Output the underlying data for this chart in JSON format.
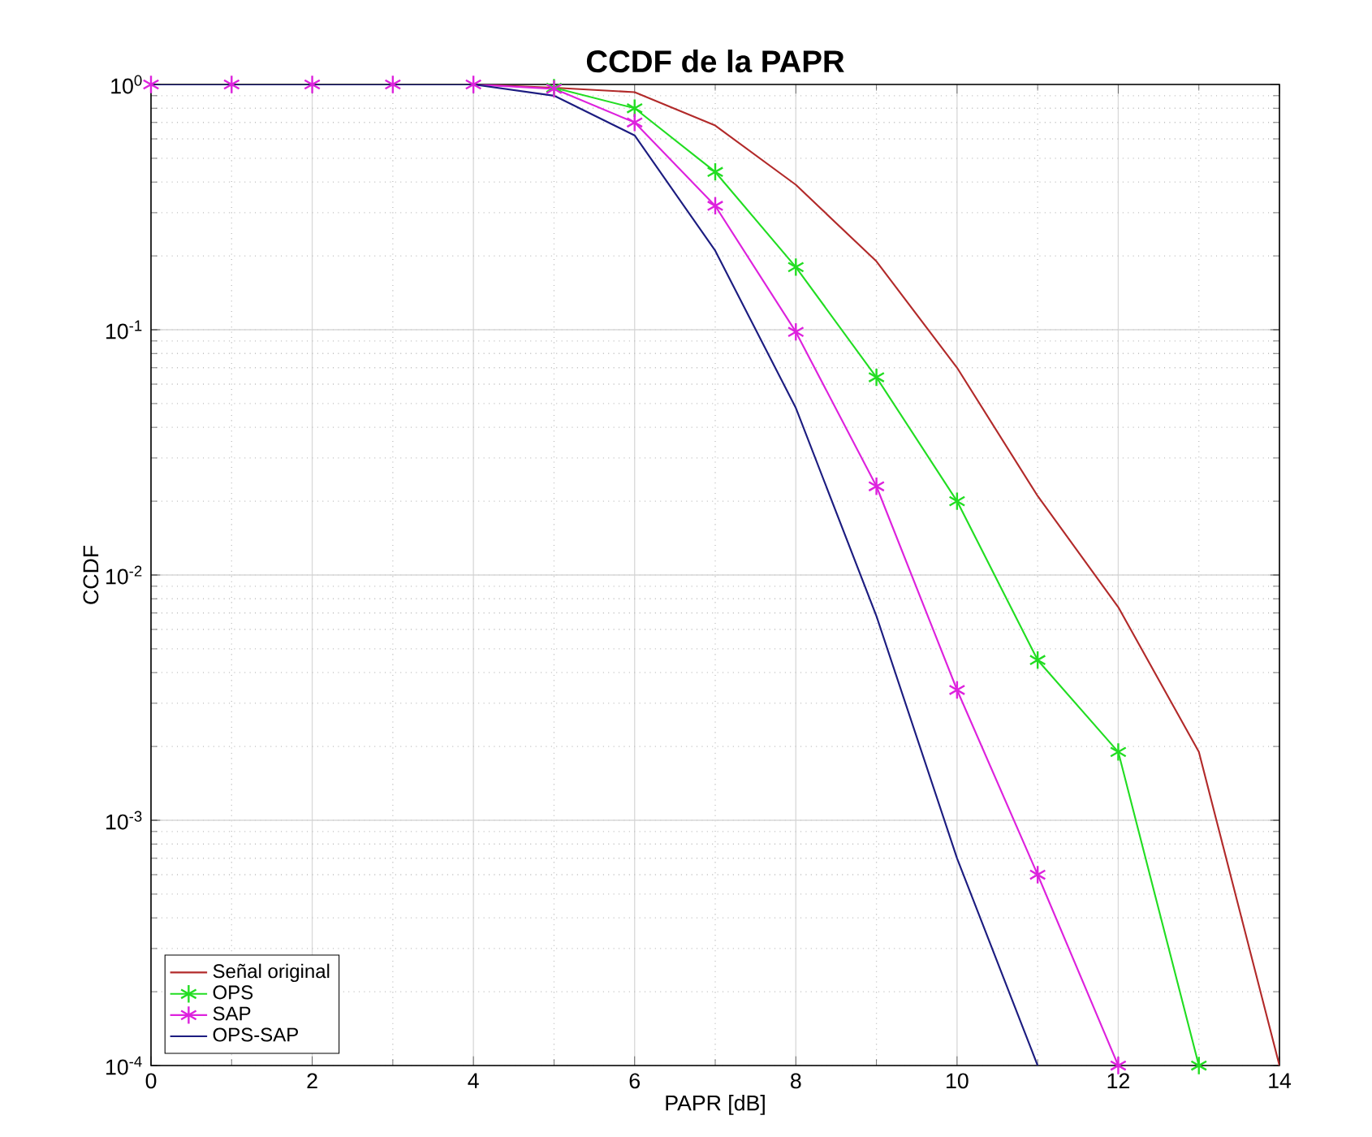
{
  "chart_data": {
    "type": "line",
    "title": "**CCDF de la PAPR**",
    "xlabel": "PAPR [dB]",
    "ylabel": "CCDF",
    "log": "y",
    "grid": true,
    "legend": "bottom left",
    "xlim": [
      0,
      14
    ],
    "xticks": [
      0,
      2,
      4,
      6,
      8,
      10,
      12,
      14
    ],
    "ylim": [
      0.0001,
      1
    ],
    "yticks": [
      {
        "value": 0.0001,
        "label": "10$^{-4}$"
      },
      {
        "value": 0.001,
        "label": "10$^{-3}$"
      },
      {
        "value": 0.01,
        "label": "10$^{-2}$"
      },
      {
        "value": 0.1,
        "label": "10$^{-1}$"
      },
      {
        "value": 1,
        "label": "10$^{0}$"
      }
    ],
    "x": [
      0,
      1,
      2,
      3,
      4,
      5,
      6,
      7,
      8,
      9,
      10,
      11,
      12,
      13,
      14
    ],
    "series": [
      {
        "name": "Señal original",
        "color": "#b22a2a",
        "marker": "none",
        "values": [
          null,
          null,
          null,
          null,
          1,
          0.97,
          0.93,
          0.68,
          0.39,
          0.19,
          0.07,
          0.021,
          0.0074,
          0.0019,
          0.0001
        ]
      },
      {
        "name": "OPS",
        "color": "#22dd22",
        "marker": "cross",
        "values": [
          null,
          null,
          null,
          null,
          null,
          0.97,
          0.8,
          0.44,
          0.18,
          0.064,
          0.02,
          0.0045,
          0.0019,
          0.0001,
          null
        ]
      },
      {
        "name": "SAP",
        "color": "#dd22dd",
        "marker": "cross",
        "values": [
          1,
          1,
          1,
          1,
          1,
          0.96,
          0.7,
          0.32,
          0.098,
          0.023,
          0.0034,
          0.0006,
          0.0001,
          null,
          null
        ]
      },
      {
        "name": "OPS-SAP",
        "color": "#1c1c80",
        "marker": "none",
        "values": [
          1,
          1,
          1,
          1,
          1,
          0.9,
          0.62,
          0.21,
          0.048,
          0.0068,
          0.0007,
          0.0001,
          null,
          null,
          null
        ]
      }
    ]
  }
}
